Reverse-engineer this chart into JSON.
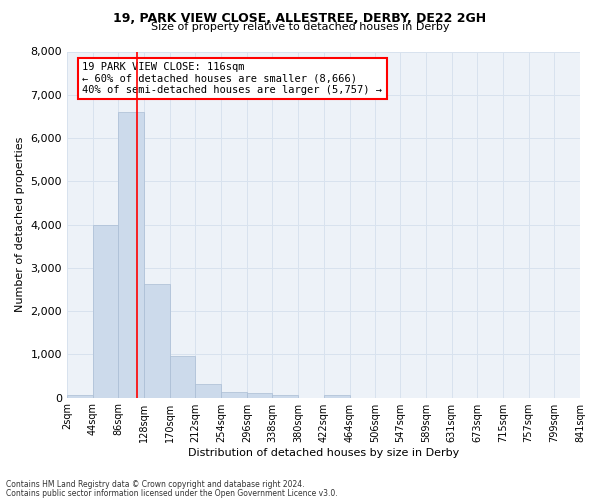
{
  "title_line1": "19, PARK VIEW CLOSE, ALLESTREE, DERBY, DE22 2GH",
  "title_line2": "Size of property relative to detached houses in Derby",
  "xlabel": "Distribution of detached houses by size in Derby",
  "ylabel": "Number of detached properties",
  "bar_color": "#ccdaeb",
  "bar_edge_color": "#aabdd4",
  "grid_color": "#d8e2ee",
  "vline_color": "red",
  "vline_x": 116,
  "bin_edges": [
    2,
    44,
    86,
    128,
    170,
    212,
    254,
    296,
    338,
    380,
    422,
    464,
    506,
    547,
    589,
    631,
    673,
    715,
    757,
    799,
    841
  ],
  "bar_heights": [
    60,
    3980,
    6600,
    2620,
    950,
    310,
    130,
    110,
    55,
    0,
    70,
    0,
    0,
    0,
    0,
    0,
    0,
    0,
    0,
    0
  ],
  "ylim": [
    0,
    8000
  ],
  "yticks": [
    0,
    1000,
    2000,
    3000,
    4000,
    5000,
    6000,
    7000,
    8000
  ],
  "annotation_line1": "19 PARK VIEW CLOSE: 116sqm",
  "annotation_line2": "← 60% of detached houses are smaller (8,666)",
  "annotation_line3": "40% of semi-detached houses are larger (5,757) →",
  "footer_line1": "Contains HM Land Registry data © Crown copyright and database right 2024.",
  "footer_line2": "Contains public sector information licensed under the Open Government Licence v3.0.",
  "background_color": "#edf2f8",
  "title1_fontsize": 9,
  "title2_fontsize": 8,
  "ylabel_fontsize": 8,
  "xlabel_fontsize": 8,
  "ytick_fontsize": 8,
  "xtick_fontsize": 7,
  "ann_fontsize": 7.5,
  "footer_fontsize": 5.5
}
